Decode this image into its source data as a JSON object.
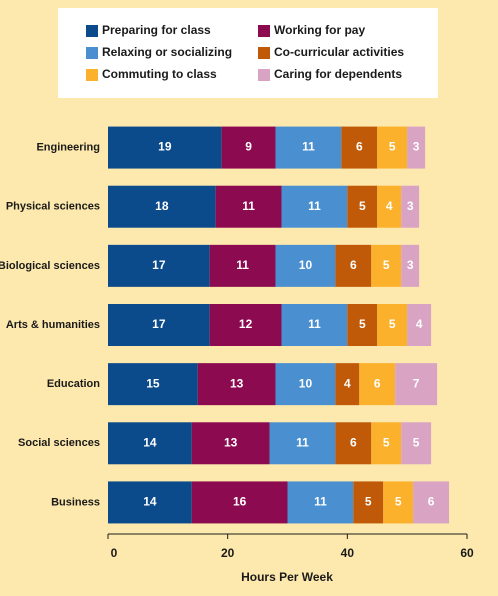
{
  "chart_data": {
    "type": "stacked-bar-horizontal",
    "xlabel": "Hours Per Week",
    "categories": [
      "Engineering",
      "Physical sciences",
      "Biological sciences",
      "Arts & humanities",
      "Education",
      "Social sciences",
      "Business"
    ],
    "series": [
      {
        "name": "Preparing for class",
        "color": "#0b4a8b",
        "values": [
          19,
          18,
          17,
          17,
          15,
          14,
          14
        ]
      },
      {
        "name": "Working for pay",
        "color": "#8b0a50",
        "values": [
          9,
          11,
          11,
          12,
          13,
          13,
          16
        ]
      },
      {
        "name": "Relaxing or socializing",
        "color": "#4a90d0",
        "values": [
          11,
          11,
          10,
          11,
          10,
          11,
          11
        ]
      },
      {
        "name": "Co-curricular activities",
        "color": "#c05a08",
        "values": [
          6,
          5,
          6,
          5,
          4,
          6,
          5
        ]
      },
      {
        "name": "Commuting to class",
        "color": "#fbb12c",
        "values": [
          5,
          4,
          5,
          5,
          6,
          5,
          5
        ]
      },
      {
        "name": "Caring for dependents",
        "color": "#d9a3c4",
        "values": [
          3,
          3,
          3,
          4,
          7,
          5,
          6
        ]
      }
    ],
    "xlim": [
      0,
      60
    ],
    "xticks": [
      0,
      20,
      40,
      60
    ]
  }
}
